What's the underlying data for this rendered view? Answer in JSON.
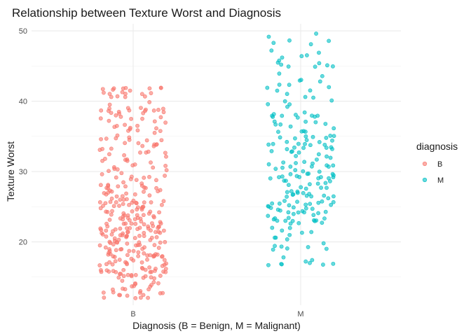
{
  "chart_data": {
    "type": "scatter",
    "title": "Relationship between Texture Worst and Diagnosis",
    "xlabel": "Diagnosis (B = Benign, M = Malignant)",
    "ylabel": "Texture Worst",
    "categories": [
      "B",
      "M"
    ],
    "yticks": [
      20,
      30,
      40,
      50
    ],
    "ylim": [
      11,
      51
    ],
    "grid": true,
    "jitter": true,
    "legend": {
      "title": "diagnosis",
      "position": "right",
      "items": [
        {
          "label": "B",
          "color": "#F8766D"
        },
        {
          "label": "M",
          "color": "#00BFC4"
        }
      ]
    },
    "series": [
      {
        "category": "B",
        "color": "#F8766D",
        "count": 357,
        "values": [
          12.0,
          12.7,
          13.0,
          14.1,
          14.9,
          15.3,
          15.7,
          16.0,
          16.3,
          16.8,
          17.1,
          17.6,
          17.9,
          18.2,
          18.7,
          19.0,
          19.5,
          19.9,
          20.3,
          20.8,
          21.2,
          21.6,
          22.0,
          22.5,
          22.9,
          23.3,
          23.8,
          24.2,
          24.6,
          25.1,
          25.5,
          26.0,
          26.5,
          27.0,
          27.6,
          28.1,
          28.8,
          29.4,
          30.2,
          31.0,
          31.8,
          32.7,
          33.6,
          34.5,
          35.5,
          36.5,
          37.5,
          38.3,
          38.8,
          40.6,
          41.5,
          41.9
        ]
      },
      {
        "category": "M",
        "color": "#00BFC4",
        "count": 212,
        "values": [
          16.7,
          17.0,
          17.8,
          18.9,
          19.8,
          20.6,
          21.3,
          22.0,
          22.6,
          23.2,
          23.7,
          24.2,
          24.7,
          25.2,
          25.7,
          26.2,
          26.7,
          27.2,
          27.7,
          28.2,
          28.7,
          29.2,
          29.7,
          30.2,
          30.7,
          31.2,
          31.7,
          32.2,
          32.7,
          33.2,
          33.8,
          34.4,
          35.0,
          35.7,
          36.4,
          37.1,
          37.8,
          38.4,
          39.2,
          40.1,
          40.6,
          41.9,
          42.8,
          44.9,
          45.4,
          47.2,
          49.6
        ]
      }
    ]
  }
}
